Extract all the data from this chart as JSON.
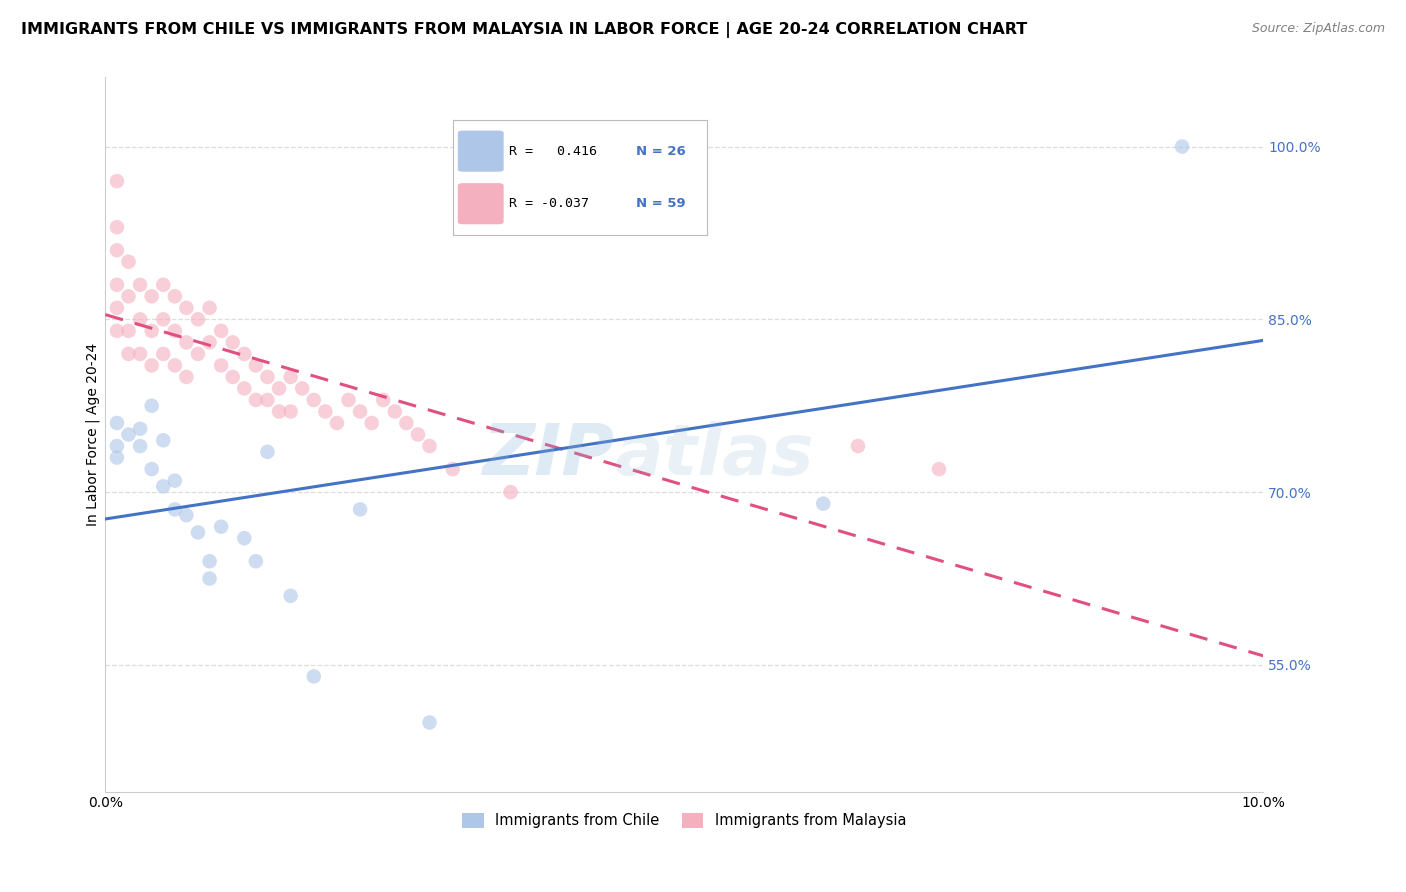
{
  "title": "IMMIGRANTS FROM CHILE VS IMMIGRANTS FROM MALAYSIA IN LABOR FORCE | AGE 20-24 CORRELATION CHART",
  "source": "Source: ZipAtlas.com",
  "ylabel": "In Labor Force | Age 20-24",
  "xlim": [
    0.0,
    0.1
  ],
  "ylim": [
    0.44,
    1.06
  ],
  "ytick_labels": [
    "55.0%",
    "70.0%",
    "85.0%",
    "100.0%"
  ],
  "ytick_values": [
    0.55,
    0.7,
    0.85,
    1.0
  ],
  "xtick_labels": [
    "0.0%",
    "10.0%"
  ],
  "xtick_values": [
    0.0,
    0.1
  ],
  "legend_r_chile": "R =   0.416",
  "legend_n_chile": "N = 26",
  "legend_r_malaysia": "R = -0.037",
  "legend_n_malaysia": "N = 59",
  "chile_color": "#aec6e8",
  "malaysia_color": "#f4b0bf",
  "chile_line_color": "#4472C4",
  "malaysia_line_color": "#E05080",
  "watermark_zip": "ZIP",
  "watermark_atlas": "atlas",
  "background_color": "#ffffff",
  "grid_color": "#dddddd",
  "title_fontsize": 11.5,
  "axis_label_fontsize": 10,
  "tick_fontsize": 10,
  "dot_size": 110,
  "dot_alpha": 0.6,
  "line_width": 2.2,
  "chile_points_x": [
    0.001,
    0.001,
    0.001,
    0.002,
    0.003,
    0.003,
    0.004,
    0.004,
    0.005,
    0.005,
    0.006,
    0.006,
    0.007,
    0.008,
    0.009,
    0.009,
    0.01,
    0.012,
    0.013,
    0.014,
    0.016,
    0.018,
    0.022,
    0.028,
    0.062,
    0.093
  ],
  "chile_points_y": [
    0.76,
    0.74,
    0.73,
    0.75,
    0.755,
    0.74,
    0.775,
    0.72,
    0.745,
    0.705,
    0.71,
    0.685,
    0.68,
    0.665,
    0.64,
    0.625,
    0.67,
    0.66,
    0.64,
    0.735,
    0.61,
    0.54,
    0.685,
    0.5,
    0.69,
    1.0
  ],
  "malaysia_points_x": [
    0.001,
    0.001,
    0.001,
    0.001,
    0.001,
    0.001,
    0.002,
    0.002,
    0.002,
    0.002,
    0.003,
    0.003,
    0.003,
    0.004,
    0.004,
    0.004,
    0.005,
    0.005,
    0.005,
    0.006,
    0.006,
    0.006,
    0.007,
    0.007,
    0.007,
    0.008,
    0.008,
    0.009,
    0.009,
    0.01,
    0.01,
    0.011,
    0.011,
    0.012,
    0.012,
    0.013,
    0.013,
    0.014,
    0.014,
    0.015,
    0.015,
    0.016,
    0.016,
    0.017,
    0.018,
    0.019,
    0.02,
    0.021,
    0.022,
    0.023,
    0.024,
    0.025,
    0.026,
    0.027,
    0.028,
    0.03,
    0.035,
    0.065,
    0.072
  ],
  "malaysia_points_y": [
    0.97,
    0.93,
    0.91,
    0.88,
    0.86,
    0.84,
    0.9,
    0.87,
    0.84,
    0.82,
    0.88,
    0.85,
    0.82,
    0.87,
    0.84,
    0.81,
    0.88,
    0.85,
    0.82,
    0.87,
    0.84,
    0.81,
    0.86,
    0.83,
    0.8,
    0.85,
    0.82,
    0.86,
    0.83,
    0.84,
    0.81,
    0.83,
    0.8,
    0.82,
    0.79,
    0.81,
    0.78,
    0.8,
    0.78,
    0.79,
    0.77,
    0.8,
    0.77,
    0.79,
    0.78,
    0.77,
    0.76,
    0.78,
    0.77,
    0.76,
    0.78,
    0.77,
    0.76,
    0.75,
    0.74,
    0.72,
    0.7,
    0.74,
    0.72
  ]
}
